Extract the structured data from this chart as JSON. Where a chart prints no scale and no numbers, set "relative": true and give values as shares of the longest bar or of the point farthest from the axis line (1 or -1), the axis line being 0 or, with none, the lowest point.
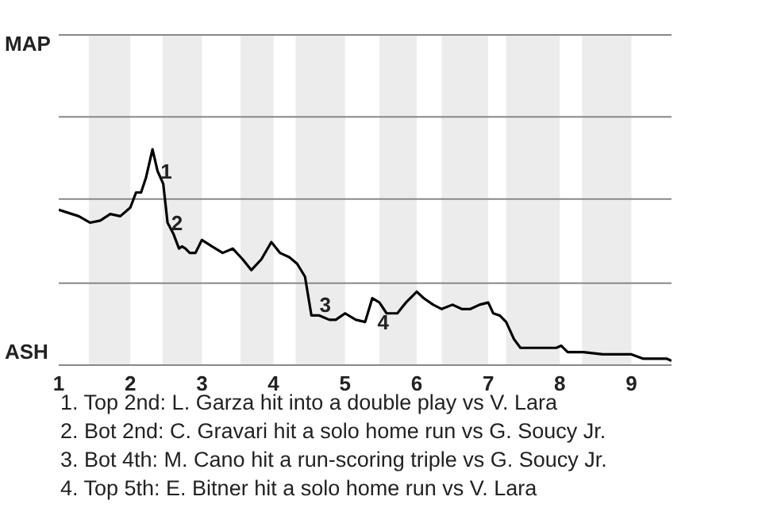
{
  "chart_data": {
    "type": "line",
    "x": [
      1.0,
      1.28,
      1.44,
      1.58,
      1.72,
      1.86,
      2.0,
      2.08,
      2.15,
      2.22,
      2.31,
      2.38,
      2.46,
      2.52,
      2.6,
      2.68,
      2.72,
      2.77,
      2.83,
      2.91,
      3.0,
      3.14,
      3.29,
      3.43,
      3.57,
      3.69,
      3.83,
      3.97,
      4.09,
      4.22,
      4.33,
      4.44,
      4.53,
      4.64,
      4.78,
      4.87,
      5.0,
      5.15,
      5.28,
      5.38,
      5.48,
      5.58,
      5.73,
      5.85,
      6.0,
      6.1,
      6.23,
      6.35,
      6.5,
      6.63,
      6.75,
      6.88,
      7.0,
      7.07,
      7.16,
      7.25,
      7.36,
      7.45,
      7.58,
      7.76,
      7.95,
      8.02,
      8.11,
      8.33,
      8.6,
      9.0,
      9.16,
      9.31,
      9.49,
      9.56
    ],
    "series": [
      {
        "color": "#000000",
        "values": [
          0.72,
          0.69,
          0.66,
          0.67,
          0.7,
          0.69,
          0.73,
          0.8,
          0.8,
          0.87,
          1,
          0.9,
          0.84,
          0.66,
          0.61,
          0.54,
          0.55,
          0.54,
          0.52,
          0.52,
          0.58,
          0.55,
          0.52,
          0.54,
          0.49,
          0.44,
          0.49,
          0.57,
          0.52,
          0.5,
          0.47,
          0.41,
          0.23,
          0.23,
          0.21,
          0.21,
          0.24,
          0.21,
          0.2,
          0.31,
          0.29,
          0.24,
          0.24,
          0.29,
          0.34,
          0.31,
          0.28,
          0.26,
          0.28,
          0.26,
          0.26,
          0.28,
          0.29,
          0.24,
          0.23,
          0.2,
          0.12,
          0.08,
          0.08,
          0.08,
          0.08,
          0.09,
          0.06,
          0.06,
          0.05,
          0.05,
          0.03,
          0.03,
          0.03,
          0.02
        ]
      }
    ],
    "relative": true,
    "xlim": [
      1,
      9.56
    ],
    "xticks": [
      1,
      2,
      3,
      4,
      5,
      6,
      7,
      8,
      9
    ],
    "ref_lines": [
      {
        "axis": "y",
        "value": 0.38,
        "color": "#888888"
      },
      {
        "axis": "y",
        "value": 0.77,
        "color": "#888888"
      },
      {
        "axis": "y",
        "value": 1.15,
        "color": "#888888"
      },
      {
        "axis": "y",
        "value": 1.53,
        "color": "#888888"
      }
    ],
    "bands": [
      {
        "axis": "x",
        "from": 1.42,
        "to": 2,
        "color": "#ececec"
      },
      {
        "axis": "x",
        "from": 2.45,
        "to": 3,
        "color": "#ececec"
      },
      {
        "axis": "x",
        "from": 3.54,
        "to": 4,
        "color": "#ececec"
      },
      {
        "axis": "x",
        "from": 4.31,
        "to": 5,
        "color": "#ececec"
      },
      {
        "axis": "x",
        "from": 5.48,
        "to": 6,
        "color": "#ececec"
      },
      {
        "axis": "x",
        "from": 6.35,
        "to": 7,
        "color": "#ececec"
      },
      {
        "axis": "x",
        "from": 7.25,
        "to": 8,
        "color": "#ececec"
      },
      {
        "axis": "x",
        "from": 8.31,
        "to": 9,
        "color": "#ececec"
      }
    ],
    "annotations": [
      "MAP",
      "ASH",
      {
        "text": "1",
        "x": 2.4,
        "y": 0.9
      },
      {
        "text": "2",
        "x": 2.55,
        "y": 0.66
      },
      {
        "text": "3",
        "x": 4.62,
        "y": 0.28
      },
      {
        "text": "4",
        "x": 5.43,
        "y": 0.2
      },
      "1. Top 2nd: L. Garza hit into a double play vs V. Lara",
      "2. Bot 2nd: C. Gravari hit a solo home run vs G. Soucy Jr.",
      "3. Bot 4th: M. Cano hit a run-scoring triple vs G. Soucy Jr.",
      "4. Top 5th: E. Bitner hit a solo home run vs V. Lara"
    ],
    "marker": "none",
    "line_style": "solid",
    "legend": false
  }
}
